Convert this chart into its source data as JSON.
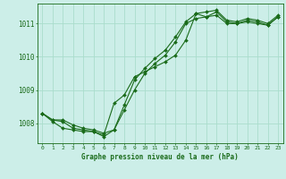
{
  "title": "Graphe pression niveau de la mer (hPa)",
  "bg_color": "#cceee8",
  "grid_color": "#aaddcc",
  "line_color": "#1a6b1a",
  "marker_color": "#1a6b1a",
  "xlim": [
    -0.5,
    23.5
  ],
  "ylim": [
    1007.4,
    1011.6
  ],
  "yticks": [
    1008,
    1009,
    1010,
    1011
  ],
  "xticks": [
    0,
    1,
    2,
    3,
    4,
    5,
    6,
    7,
    8,
    9,
    10,
    11,
    12,
    13,
    14,
    15,
    16,
    17,
    18,
    19,
    20,
    21,
    22,
    23
  ],
  "series1_x": [
    0,
    1,
    2,
    3,
    4,
    5,
    6,
    7,
    8,
    9,
    10,
    11,
    12,
    13,
    14,
    15,
    16,
    17,
    18,
    19,
    20,
    21,
    22,
    23
  ],
  "series1_y": [
    1008.3,
    1008.1,
    1008.05,
    1007.85,
    1007.8,
    1007.75,
    1007.6,
    1007.8,
    1008.4,
    1009.0,
    1009.5,
    1009.8,
    1010.05,
    1010.45,
    1011.0,
    1011.15,
    1011.2,
    1011.25,
    1011.0,
    1011.0,
    1011.05,
    1011.0,
    1010.95,
    1011.2
  ],
  "series2_x": [
    0,
    1,
    2,
    3,
    4,
    5,
    6,
    7,
    8,
    9,
    10,
    11,
    12,
    13,
    14,
    15,
    16,
    17,
    18,
    19,
    20,
    21,
    22,
    23
  ],
  "series2_y": [
    1008.3,
    1008.1,
    1008.1,
    1007.95,
    1007.85,
    1007.8,
    1007.7,
    1007.8,
    1008.55,
    1009.3,
    1009.65,
    1009.95,
    1010.2,
    1010.6,
    1011.05,
    1011.3,
    1011.2,
    1011.35,
    1011.05,
    1011.0,
    1011.1,
    1011.05,
    1010.95,
    1011.2
  ],
  "series3_x": [
    0,
    1,
    2,
    3,
    4,
    5,
    6,
    7,
    8,
    9,
    10,
    11,
    12,
    13,
    14,
    15,
    16,
    17,
    18,
    19,
    20,
    21,
    22,
    23
  ],
  "series3_y": [
    1008.3,
    1008.05,
    1007.85,
    1007.8,
    1007.75,
    1007.75,
    1007.65,
    1008.6,
    1008.85,
    1009.4,
    1009.55,
    1009.7,
    1009.85,
    1010.05,
    1010.5,
    1011.3,
    1011.35,
    1011.4,
    1011.1,
    1011.05,
    1011.15,
    1011.1,
    1011.0,
    1011.25
  ]
}
